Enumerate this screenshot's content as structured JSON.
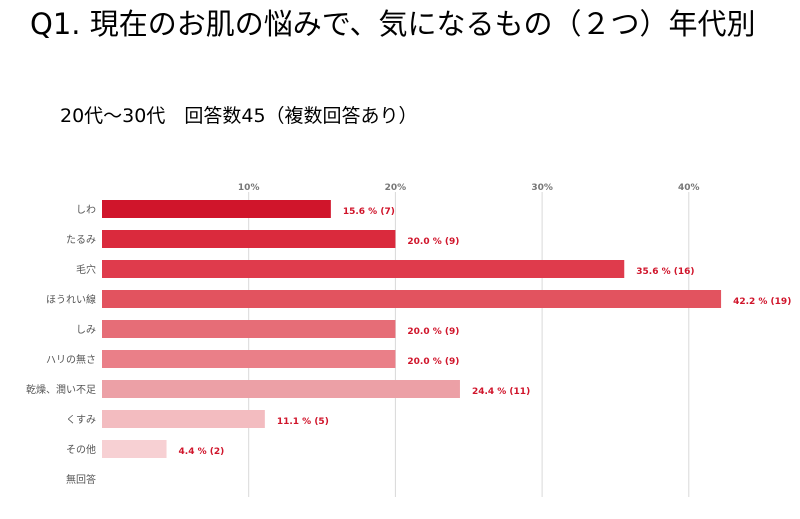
{
  "title": "Q1. 現在のお肌の悩みで、気になるもの（２つ）年代別",
  "subtitle": "20代～30代　回答数45（複数回答あり）",
  "colors": {
    "label": "#d0152b",
    "bars": [
      "#d0152b",
      "#da2a3d",
      "#df3b4c",
      "#e2535f",
      "#e66d77",
      "#ea7f88",
      "#eca0a6",
      "#f3bcc0",
      "#f7d0d3",
      "#f9dddf"
    ]
  },
  "chart_data": {
    "type": "bar",
    "orientation": "horizontal",
    "categories": [
      "しわ",
      "たるみ",
      "毛穴",
      "ほうれい線",
      "しみ",
      "ハリの無さ",
      "乾燥、潤い不足",
      "くすみ",
      "その他",
      "無回答"
    ],
    "values": [
      15.6,
      20.0,
      35.6,
      42.2,
      20.0,
      20.0,
      24.4,
      11.1,
      4.4,
      0
    ],
    "counts": [
      7,
      9,
      16,
      19,
      9,
      9,
      11,
      5,
      2,
      0
    ],
    "data_labels": [
      "15.6 % (7)",
      "20.0 % (9)",
      "35.6 % (16)",
      "42.2 % (19)",
      "20.0 % (9)",
      "20.0 % (9)",
      "24.4 % (11)",
      "11.1 % (5)",
      "4.4 % (2)",
      ""
    ],
    "xlim": [
      0,
      43
    ],
    "xticks": [
      10,
      20,
      30,
      40
    ],
    "xtick_labels": [
      "10%",
      "20%",
      "30%",
      "40%"
    ],
    "grid": true,
    "axis_position": "top"
  }
}
